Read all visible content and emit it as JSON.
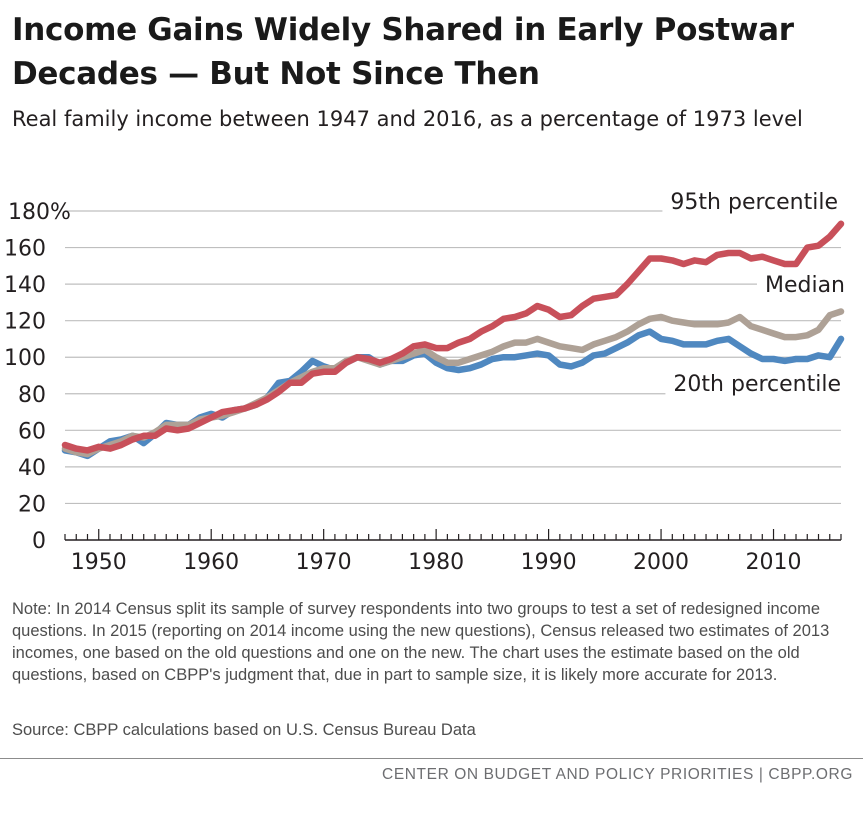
{
  "title": "Income Gains Widely Shared in Early Postwar Decades — But Not Since Then",
  "subtitle": "Real family income between 1947 and 2016, as a percentage of 1973 level",
  "note": "Note: In 2014 Census split its sample of survey respondents into two groups to test a set of redesigned income questions.  In 2015 (reporting on 2014 income using the new questions), Census released two estimates of 2013 incomes, one based on the old questions and one on the new.  The chart uses the estimate based on the old questions, based on CBPP's judgment that, due in part to sample size, it is likely more accurate for 2013.",
  "source": "Source: CBPP calculations based on U.S. Census Bureau Data",
  "footer": "CENTER ON BUDGET AND POLICY PRIORITIES | CBPP.ORG",
  "colors": {
    "p95": "#c8505a",
    "median": "#aea196",
    "p20": "#4f88c0",
    "grid": "#bfbfbf",
    "axis": "#231f20"
  },
  "chart_data": {
    "type": "line",
    "title": "Income Gains Widely Shared in Early Postwar Decades — But Not Since Then",
    "subtitle": "Real family income between 1947 and 2016, as a percentage of 1973 level",
    "xlabel": "",
    "ylabel": "",
    "xlim": [
      1947,
      2016
    ],
    "ylim": [
      0,
      180
    ],
    "y_ticks": [
      0,
      20,
      40,
      60,
      80,
      100,
      120,
      140,
      160,
      180
    ],
    "y_tick_labels": [
      "0",
      "20",
      "40",
      "60",
      "80",
      "100",
      "120",
      "140",
      "160",
      "180%"
    ],
    "x_ticks": [
      1950,
      1960,
      1970,
      1980,
      1990,
      2000,
      2010
    ],
    "x_tick_labels": [
      "1950",
      "1960",
      "1970",
      "1980",
      "1990",
      "2000",
      "2010"
    ],
    "grid": true,
    "legend": "direct labels at right",
    "x": [
      1947,
      1948,
      1949,
      1950,
      1951,
      1952,
      1953,
      1954,
      1955,
      1956,
      1957,
      1958,
      1959,
      1960,
      1961,
      1962,
      1963,
      1964,
      1965,
      1966,
      1967,
      1968,
      1969,
      1970,
      1971,
      1972,
      1973,
      1974,
      1975,
      1976,
      1977,
      1978,
      1979,
      1980,
      1981,
      1982,
      1983,
      1984,
      1985,
      1986,
      1987,
      1988,
      1989,
      1990,
      1991,
      1992,
      1993,
      1994,
      1995,
      1996,
      1997,
      1998,
      1999,
      2000,
      2001,
      2002,
      2003,
      2004,
      2005,
      2006,
      2007,
      2008,
      2009,
      2010,
      2011,
      2012,
      2013,
      2014,
      2015,
      2016
    ],
    "series": [
      {
        "name": "95th percentile",
        "color_key": "p95",
        "values": [
          52,
          50,
          49,
          51,
          50,
          52,
          55,
          57,
          57,
          61,
          60,
          61,
          64,
          67,
          70,
          71,
          72,
          74,
          77,
          81,
          86,
          86,
          91,
          92,
          92,
          97,
          100,
          99,
          97,
          99,
          102,
          106,
          107,
          105,
          105,
          108,
          110,
          114,
          117,
          121,
          122,
          124,
          128,
          126,
          122,
          123,
          128,
          132,
          133,
          134,
          140,
          147,
          154,
          154,
          153,
          151,
          153,
          152,
          156,
          157,
          157,
          154,
          155,
          153,
          151,
          151,
          160,
          161,
          166,
          173
        ]
      },
      {
        "name": "Median",
        "color_key": "median",
        "values": [
          50,
          48,
          47,
          50,
          52,
          54,
          57,
          56,
          59,
          63,
          63,
          63,
          66,
          67,
          68,
          70,
          72,
          75,
          78,
          82,
          86,
          89,
          92,
          94,
          94,
          98,
          100,
          98,
          96,
          98,
          100,
          102,
          104,
          100,
          97,
          97,
          99,
          101,
          103,
          106,
          108,
          108,
          110,
          108,
          106,
          105,
          104,
          107,
          109,
          111,
          114,
          118,
          121,
          122,
          120,
          119,
          118,
          118,
          118,
          119,
          122,
          117,
          115,
          113,
          111,
          111,
          112,
          115,
          123,
          125
        ]
      },
      {
        "name": "20th percentile",
        "color_key": "p20",
        "values": [
          49,
          48,
          46,
          50,
          54,
          55,
          57,
          53,
          58,
          64,
          63,
          63,
          67,
          69,
          67,
          71,
          72,
          74,
          78,
          86,
          87,
          92,
          98,
          95,
          93,
          97,
          100,
          100,
          96,
          98,
          98,
          101,
          102,
          97,
          94,
          93,
          94,
          96,
          99,
          100,
          100,
          101,
          102,
          101,
          96,
          95,
          97,
          101,
          102,
          105,
          108,
          112,
          114,
          110,
          109,
          107,
          107,
          107,
          109,
          110,
          106,
          102,
          99,
          99,
          98,
          99,
          99,
          101,
          100,
          110
        ]
      }
    ],
    "annotations": [
      "95th percentile",
      "Median",
      "20th percentile"
    ]
  }
}
